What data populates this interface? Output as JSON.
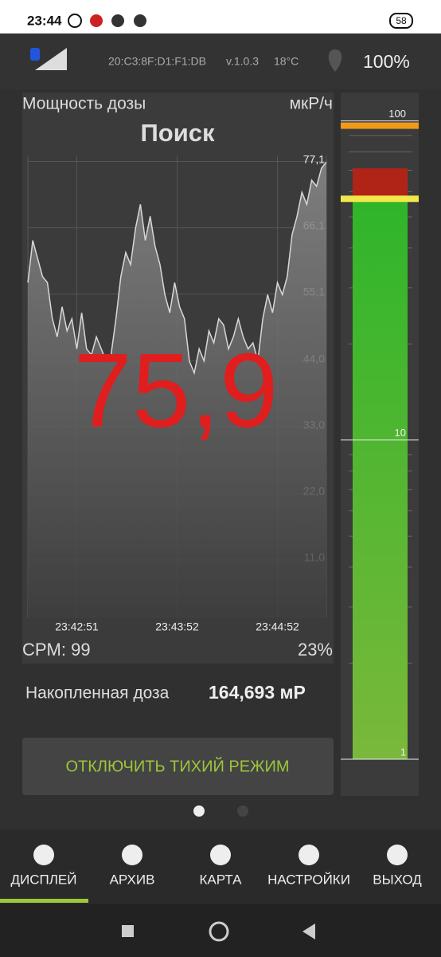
{
  "status_bar": {
    "time": "23:44",
    "battery": "58"
  },
  "header": {
    "device": "20:C3:8F:D1:F1:DB",
    "version": "v.1.0.3",
    "temperature": "18°C",
    "battery": "100%"
  },
  "chart_data": {
    "type": "area",
    "title": "Мощность дозы",
    "unit": "мкР/ч",
    "mode": "Поиск",
    "current_value": "75,9",
    "values": [
      57,
      64,
      61,
      58,
      57,
      51,
      48,
      53,
      49,
      51,
      46,
      52,
      46,
      45,
      48,
      46,
      44,
      45,
      51,
      58,
      62,
      60,
      66,
      70,
      64,
      68,
      63,
      60,
      55,
      52,
      57,
      53,
      51,
      44,
      42,
      46,
      44,
      49,
      47,
      51,
      50,
      46,
      48,
      51,
      48,
      46,
      47,
      44,
      51,
      55,
      52,
      57,
      55,
      58,
      65,
      68,
      72,
      70,
      74,
      73,
      76,
      77
    ],
    "color": "#d8d8d8",
    "xlim": [
      0,
      61
    ],
    "xticks": [
      {
        "value": 10,
        "label": "23:42:51"
      },
      {
        "value": 30.5,
        "label": "23:43:52"
      },
      {
        "value": 51,
        "label": "23:44:52"
      }
    ],
    "ylim": [
      0,
      78.1
    ],
    "yticks": [
      {
        "value": 11,
        "label": "11,0"
      },
      {
        "value": 22,
        "label": "22,0"
      },
      {
        "value": 33,
        "label": "33,0"
      },
      {
        "value": 44,
        "label": "44,0"
      },
      {
        "value": 55.1,
        "label": "55,1"
      },
      {
        "value": 66.1,
        "label": "66,1"
      },
      {
        "value": 77.1,
        "label": "77,1"
      }
    ],
    "grid": true
  },
  "footer": {
    "cpm": "CPM: 99",
    "percent": "23%"
  },
  "accumulated": {
    "label": "Накопленная доза",
    "value": "164,693 мР"
  },
  "button": "ОТКЛЮЧИТЬ ТИХИЙ РЕЖИМ",
  "gauge": {
    "type": "bar",
    "log_scale": true,
    "ylim": [
      1,
      110
    ],
    "yticks": [
      1,
      10,
      100
    ],
    "value": 57,
    "max": 71,
    "threshold": 100,
    "color": "#3cb02a",
    "max_color": "#b02418",
    "threshold_color": "#f09a1a",
    "level_color": "#f2e84a"
  },
  "nav": [
    "ДИСПЛЕЙ",
    "АРХИВ",
    "КАРТА",
    "НАСТРОЙКИ",
    "ВЫХОД"
  ]
}
